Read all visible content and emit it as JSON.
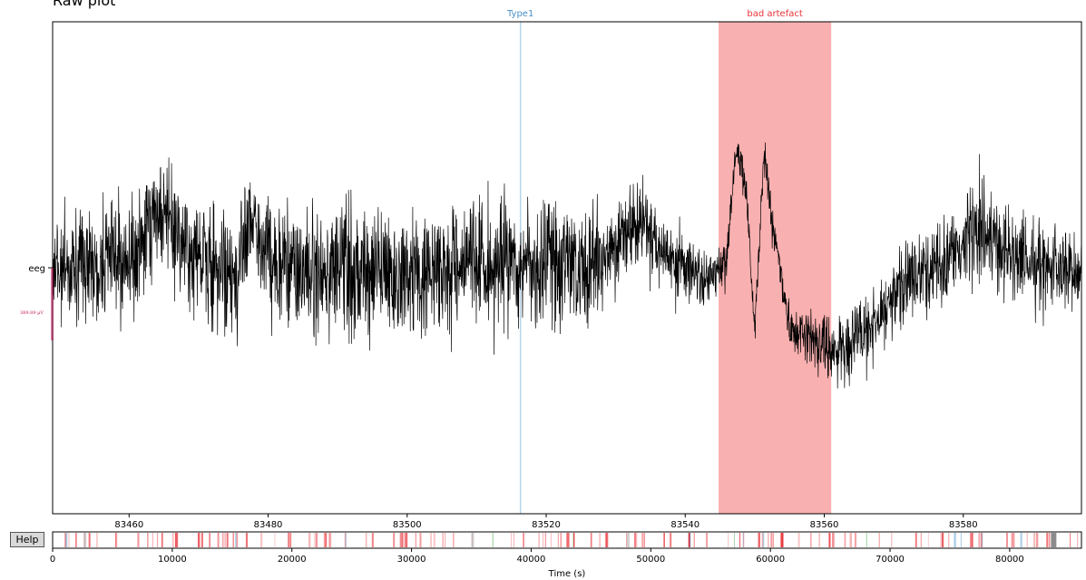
{
  "window": {
    "title": "Raw plot"
  },
  "help_button": {
    "label": "Help"
  },
  "channel": {
    "name": "eeg",
    "scale_label": "389.89 µV"
  },
  "annotations": [
    {
      "label": "Type1",
      "kind": "line",
      "onset": 83516.3,
      "color": "#4a90c8",
      "line_color": "#b5d4ea"
    },
    {
      "label": "bad artefact",
      "kind": "span",
      "onset": 83544.8,
      "offset": 83561.0,
      "color": "#e8333a",
      "fill": "#f9b0b0"
    }
  ],
  "chart_data": {
    "type": "line",
    "series": [
      {
        "name": "eeg",
        "color": "#000000"
      }
    ],
    "xlim": [
      83449,
      83597
    ],
    "xticks": [
      83460,
      83480,
      83500,
      83520,
      83540,
      83560,
      83580
    ],
    "xlabel": "",
    "ylabel": "",
    "grid": false
  },
  "overview": {
    "xlim": [
      0,
      86000
    ],
    "xticks": [
      0,
      10000,
      20000,
      30000,
      40000,
      50000,
      60000,
      70000,
      80000
    ],
    "xlabel": "Time (s)",
    "view_window": [
      83449,
      83597
    ],
    "view_color": "#808080",
    "bad_color": "#e8333a",
    "type1_color": "#4a90c8",
    "other_color": "#4caf50"
  }
}
